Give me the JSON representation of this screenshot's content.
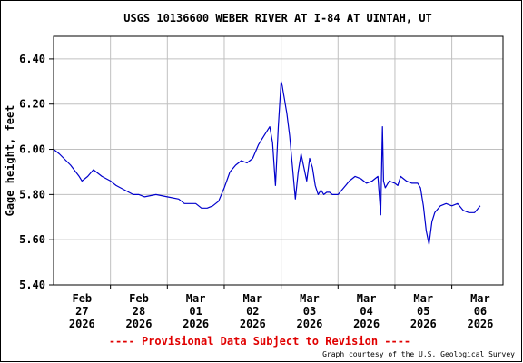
{
  "chart_data": {
    "type": "line",
    "title": "USGS 10136600 WEBER RIVER AT I-84 AT UINTAH, UT",
    "ylabel": "Gage height, feet",
    "xlabel": "",
    "ylim": [
      5.4,
      6.5
    ],
    "xlim": [
      0,
      7.9
    ],
    "yticks": [
      5.4,
      5.6,
      5.8,
      6.0,
      6.2,
      6.4
    ],
    "ytick_labels": [
      "5.40",
      "5.60",
      "5.80",
      "6.00",
      "6.20",
      "6.40"
    ],
    "xticks": [
      {
        "pos": 0.5,
        "lines": [
          "Feb",
          "27",
          "2026"
        ]
      },
      {
        "pos": 1.5,
        "lines": [
          "Feb",
          "28",
          "2026"
        ]
      },
      {
        "pos": 2.5,
        "lines": [
          "Mar",
          "01",
          "2026"
        ]
      },
      {
        "pos": 3.5,
        "lines": [
          "Mar",
          "02",
          "2026"
        ]
      },
      {
        "pos": 4.5,
        "lines": [
          "Mar",
          "03",
          "2026"
        ]
      },
      {
        "pos": 5.5,
        "lines": [
          "Mar",
          "04",
          "2026"
        ]
      },
      {
        "pos": 6.5,
        "lines": [
          "Mar",
          "05",
          "2026"
        ]
      },
      {
        "pos": 7.5,
        "lines": [
          "Mar",
          "06",
          "2026"
        ]
      }
    ],
    "grid": true,
    "series": [
      {
        "color": "#0000cc",
        "x": [
          0.0,
          0.1,
          0.3,
          0.45,
          0.5,
          0.55,
          0.6,
          0.7,
          0.75,
          0.85,
          1.0,
          1.1,
          1.25,
          1.4,
          1.5,
          1.6,
          1.8,
          2.0,
          2.2,
          2.3,
          2.5,
          2.6,
          2.7,
          2.8,
          2.9,
          3.0,
          3.1,
          3.2,
          3.3,
          3.4,
          3.5,
          3.6,
          3.7,
          3.8,
          3.85,
          3.9,
          3.95,
          4.0,
          4.02,
          4.04,
          4.06,
          4.08,
          4.1,
          4.15,
          4.2,
          4.25,
          4.3,
          4.35,
          4.4,
          4.45,
          4.5,
          4.55,
          4.6,
          4.65,
          4.7,
          4.75,
          4.8,
          4.85,
          4.9,
          5.0,
          5.1,
          5.2,
          5.3,
          5.4,
          5.5,
          5.6,
          5.7,
          5.75,
          5.78,
          5.8,
          5.83,
          5.9,
          6.0,
          6.05,
          6.1,
          6.2,
          6.3,
          6.4,
          6.45,
          6.5,
          6.55,
          6.6,
          6.65,
          6.7,
          6.8,
          6.9,
          7.0,
          7.1,
          7.2,
          7.3,
          7.4,
          7.5
        ],
        "y": [
          6.0,
          5.98,
          5.93,
          5.88,
          5.86,
          5.87,
          5.88,
          5.91,
          5.9,
          5.88,
          5.86,
          5.84,
          5.82,
          5.8,
          5.8,
          5.79,
          5.8,
          5.79,
          5.78,
          5.76,
          5.76,
          5.74,
          5.74,
          5.75,
          5.77,
          5.83,
          5.9,
          5.93,
          5.95,
          5.94,
          5.96,
          6.02,
          6.06,
          6.1,
          6.03,
          5.84,
          6.1,
          6.3,
          6.28,
          6.25,
          6.22,
          6.19,
          6.16,
          6.06,
          5.92,
          5.78,
          5.9,
          5.98,
          5.92,
          5.86,
          5.96,
          5.92,
          5.84,
          5.8,
          5.82,
          5.8,
          5.81,
          5.81,
          5.8,
          5.8,
          5.83,
          5.86,
          5.88,
          5.87,
          5.85,
          5.86,
          5.88,
          5.71,
          6.1,
          5.86,
          5.83,
          5.86,
          5.85,
          5.84,
          5.88,
          5.86,
          5.85,
          5.85,
          5.83,
          5.75,
          5.64,
          5.58,
          5.68,
          5.72,
          5.75,
          5.76,
          5.75,
          5.76,
          5.73,
          5.72,
          5.72,
          5.75
        ]
      }
    ],
    "footer_note": "---- Provisional Data Subject to Revision ----",
    "credit": "Graph courtesy of the U.S. Geological Survey"
  }
}
